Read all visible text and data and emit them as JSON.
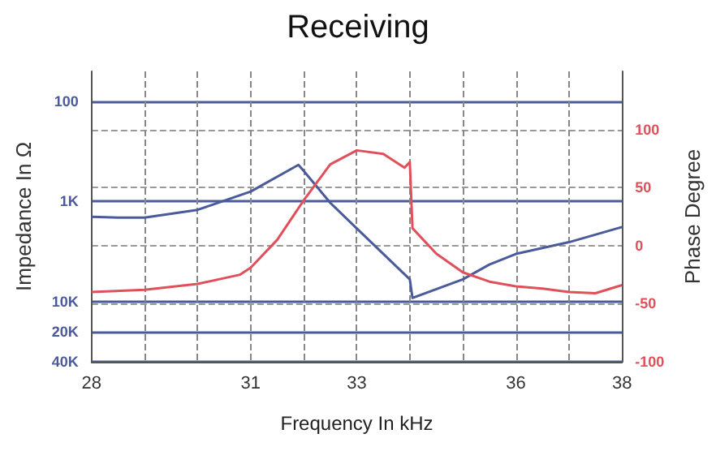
{
  "chart_data": {
    "type": "line",
    "title": "Receiving",
    "xlabel": "Frequency In kHz",
    "ylabel": "Impedance In Ω",
    "y2label": "Phase Degree",
    "xlim": [
      28,
      38
    ],
    "xticks": [
      28,
      {
        "value": 29,
        "label": null
      },
      {
        "value": 30,
        "label": null
      },
      31,
      {
        "value": 32,
        "label": null
      },
      33,
      {
        "value": 34,
        "label": null
      },
      {
        "value": 35,
        "label": null
      },
      36,
      {
        "value": 37,
        "label": null
      },
      38
    ],
    "ylim": [
      40000,
      50
    ],
    "log": "y",
    "yticks": [
      100,
      {
        "value": 1000,
        "label": "1K"
      },
      {
        "value": 10000,
        "label": "10K"
      },
      {
        "value": 20000,
        "label": "20K"
      },
      {
        "value": 40000,
        "label": "40K"
      }
    ],
    "y2lim": [
      -100,
      150
    ],
    "y2ticks": [
      -100,
      -50,
      0,
      50,
      100
    ],
    "grid": true,
    "marker": "none",
    "line_style": "solid",
    "series": [
      {
        "color": "#4a5a9a",
        "x": [
          28,
          28.5,
          29,
          30,
          31,
          31.9,
          32,
          32.5,
          33,
          34,
          34.05,
          35,
          35.5,
          36,
          37,
          38
        ],
        "values": [
          1420,
          1450,
          1450,
          1210,
          795,
          430,
          495,
          1030,
          1860,
          6000,
          9200,
          6000,
          4270,
          3340,
          2550,
          1800
        ]
      },
      {
        "color": "#e0505a",
        "axis": "y2",
        "x": [
          28,
          29,
          30,
          30.8,
          31,
          31.5,
          32,
          32.5,
          33,
          33.5,
          33.9,
          34,
          34.05,
          34.5,
          35,
          35.5,
          36,
          36.5,
          37,
          37.5,
          38
        ],
        "values": [
          -40,
          -38,
          -33,
          -25,
          -19,
          5,
          39,
          70,
          82,
          79,
          67,
          72,
          15,
          -7,
          -23,
          -31,
          -35,
          -37,
          -40,
          -41,
          -34
        ]
      }
    ]
  }
}
